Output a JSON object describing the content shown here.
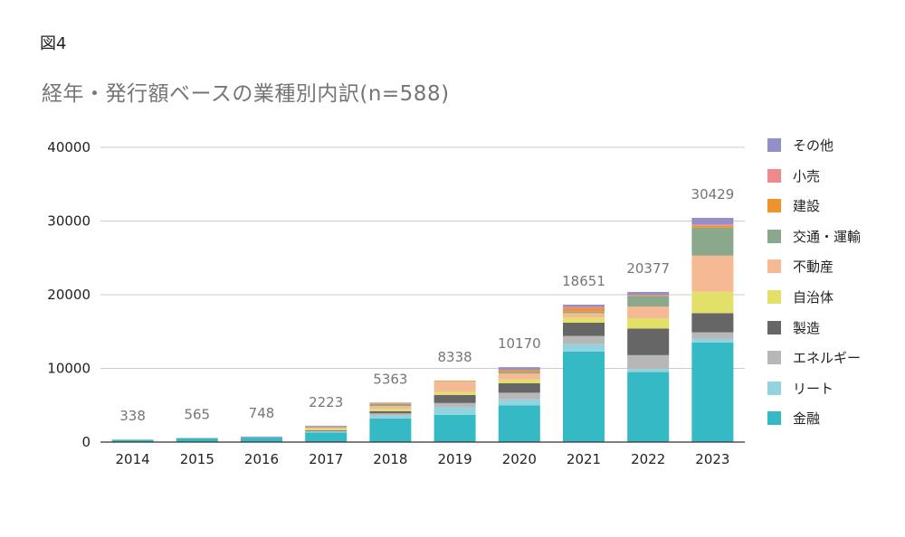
{
  "figure_label": "図4",
  "chart_data": {
    "type": "bar",
    "stacked": true,
    "title": "経年・発行額ベースの業種別内訳(n=588)",
    "xlabel": "",
    "ylabel": "",
    "ylim": [
      0,
      40000
    ],
    "yticks": [
      "0",
      "10000",
      "20000",
      "30000",
      "40000"
    ],
    "grid": true,
    "legend_position": "right",
    "categories": [
      "2014",
      "2015",
      "2016",
      "2017",
      "2018",
      "2019",
      "2020",
      "2021",
      "2022",
      "2023"
    ],
    "totals": [
      "338",
      "565",
      "748",
      "2223",
      "5363",
      "8338",
      "10170",
      "18651",
      "20377",
      "30429"
    ],
    "series": [
      {
        "name": "金融",
        "color": "#35b9c4",
        "values": [
          300,
          520,
          600,
          1300,
          3200,
          3700,
          5000,
          12300,
          9500,
          13500
        ]
      },
      {
        "name": "リート",
        "color": "#93d3e0",
        "values": [
          0,
          0,
          0,
          100,
          400,
          1000,
          800,
          1000,
          400,
          500
        ]
      },
      {
        "name": "エネルギー",
        "color": "#b7b7b7",
        "values": [
          0,
          0,
          0,
          100,
          300,
          600,
          900,
          1100,
          1900,
          900
        ]
      },
      {
        "name": "製造",
        "color": "#666666",
        "values": [
          0,
          0,
          0,
          100,
          300,
          1100,
          1300,
          1800,
          3600,
          2600
        ]
      },
      {
        "name": "自治体",
        "color": "#e3e06a",
        "values": [
          0,
          0,
          0,
          200,
          300,
          400,
          500,
          700,
          1400,
          2900
        ]
      },
      {
        "name": "不動産",
        "color": "#f5b994",
        "values": [
          0,
          0,
          0,
          150,
          400,
          1400,
          800,
          600,
          1600,
          4900
        ]
      },
      {
        "name": "交通・運輸",
        "color": "#8aa98c",
        "values": [
          38,
          45,
          50,
          100,
          300,
          38,
          200,
          200,
          1400,
          3800
        ]
      },
      {
        "name": "建設",
        "color": "#f0932b",
        "values": [
          0,
          0,
          0,
          50,
          63,
          100,
          270,
          400,
          77,
          250
        ]
      },
      {
        "name": "小売",
        "color": "#ec8a8e",
        "values": [
          0,
          0,
          0,
          23,
          100,
          0,
          0,
          251,
          100,
          179
        ]
      },
      {
        "name": "その他",
        "color": "#948fc8",
        "values": [
          0,
          0,
          98,
          100,
          0,
          0,
          400,
          300,
          400,
          900
        ]
      }
    ]
  }
}
